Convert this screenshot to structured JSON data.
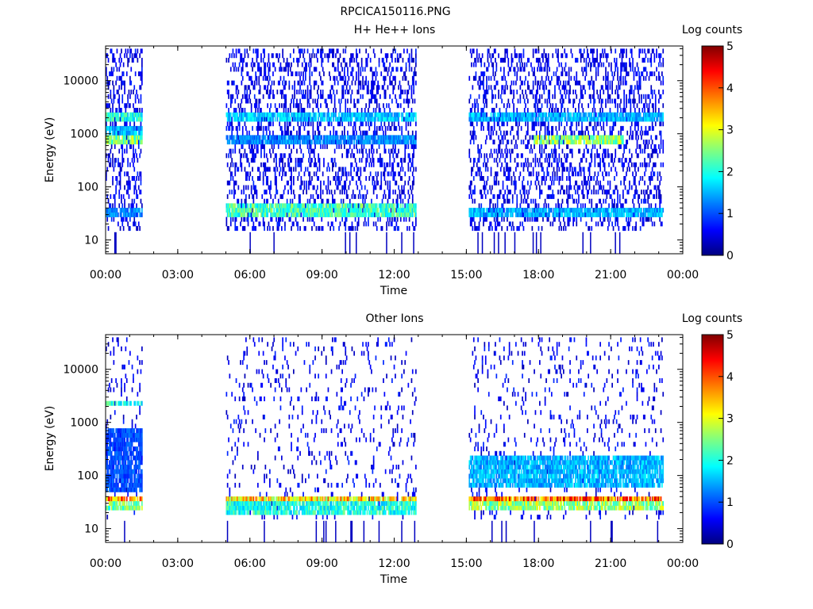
{
  "figure": {
    "title": "RPCICA150116.PNG"
  },
  "colormap": [
    "#000080",
    "#0000ff",
    "#0080ff",
    "#00ffff",
    "#80ff80",
    "#ffff00",
    "#ff8000",
    "#ff0000",
    "#800000"
  ],
  "chart_data": [
    {
      "type": "heatmap",
      "title": "H+ He++ Ions",
      "xlabel": "Time",
      "ylabel": "Energy (eV)",
      "xlim": [
        0,
        24
      ],
      "ylim": [
        5.5,
        45000
      ],
      "yscale": "log",
      "x_tick_values": [
        0,
        3,
        6,
        9,
        12,
        15,
        18,
        21,
        24
      ],
      "x_tick_labels": [
        "00:00",
        "03:00",
        "06:00",
        "09:00",
        "12:00",
        "15:00",
        "18:00",
        "21:00",
        "00:00"
      ],
      "y_tick_values": [
        10,
        100,
        1000,
        10000
      ],
      "y_tick_labels": [
        "10",
        "100",
        "1000",
        "10000"
      ],
      "colorbar": {
        "label": "Log counts",
        "range": [
          0,
          5
        ],
        "ticks": [
          "0",
          "1",
          "2",
          "3",
          "4",
          "5"
        ]
      },
      "data_intervals": [
        [
          0.0,
          1.5
        ],
        [
          5.0,
          12.9
        ],
        [
          15.1,
          23.2
        ]
      ],
      "features": [
        {
          "t": [
            0.0,
            1.5
          ],
          "e": [
            28,
            42
          ],
          "level": 1.3
        },
        {
          "t": [
            0.0,
            1.5
          ],
          "e": [
            600,
            1000
          ],
          "level": 2.5
        },
        {
          "t": [
            0.0,
            1.5
          ],
          "e": [
            1800,
            2600
          ],
          "level": 2.0
        },
        {
          "t": [
            0.0,
            1.5
          ],
          "e": [
            1000,
            1400
          ],
          "level": 1.5
        },
        {
          "t": [
            5.0,
            12.9
          ],
          "e": [
            25,
            45
          ],
          "level": 2.2
        },
        {
          "t": [
            5.0,
            12.9
          ],
          "e": [
            1800,
            2500
          ],
          "level": 1.6
        },
        {
          "t": [
            5.0,
            12.9
          ],
          "e": [
            600,
            900
          ],
          "level": 1.3
        },
        {
          "t": [
            15.1,
            23.2
          ],
          "e": [
            25,
            42
          ],
          "level": 1.5
        },
        {
          "t": [
            15.1,
            23.2
          ],
          "e": [
            1800,
            2500
          ],
          "level": 1.5
        },
        {
          "t": [
            17.8,
            21.5
          ],
          "e": [
            600,
            900
          ],
          "level": 2.6
        }
      ]
    },
    {
      "type": "heatmap",
      "title": "Other Ions",
      "xlabel": "Time",
      "ylabel": "Energy (eV)",
      "xlim": [
        0,
        24
      ],
      "ylim": [
        5.5,
        45000
      ],
      "yscale": "log",
      "x_tick_values": [
        0,
        3,
        6,
        9,
        12,
        15,
        18,
        21,
        24
      ],
      "x_tick_labels": [
        "00:00",
        "03:00",
        "06:00",
        "09:00",
        "12:00",
        "15:00",
        "18:00",
        "21:00",
        "00:00"
      ],
      "y_tick_values": [
        10,
        100,
        1000,
        10000
      ],
      "y_tick_labels": [
        "10",
        "100",
        "1000",
        "10000"
      ],
      "colorbar": {
        "label": "Log counts",
        "range": [
          0,
          5
        ],
        "ticks": [
          "0",
          "1",
          "2",
          "3",
          "4",
          "5"
        ]
      },
      "data_intervals": [
        [
          0.0,
          1.5
        ],
        [
          5.0,
          12.9
        ],
        [
          15.1,
          23.2
        ]
      ],
      "features": [
        {
          "t": [
            0.0,
            1.5
          ],
          "e": [
            30,
            42
          ],
          "level": 3.6
        },
        {
          "t": [
            0.0,
            1.5
          ],
          "e": [
            22,
            30
          ],
          "level": 2.4
        },
        {
          "t": [
            0.0,
            1.5
          ],
          "e": [
            1900,
            2500
          ],
          "level": 2.0
        },
        {
          "t": [
            0.0,
            1.5
          ],
          "e": [
            50,
            800
          ],
          "level": 1.0
        },
        {
          "t": [
            5.0,
            12.9
          ],
          "e": [
            30,
            42
          ],
          "level": 3.3
        },
        {
          "t": [
            5.0,
            12.9
          ],
          "e": [
            20,
            30
          ],
          "level": 2.0
        },
        {
          "t": [
            15.1,
            23.2
          ],
          "e": [
            30,
            42
          ],
          "level": 3.8
        },
        {
          "t": [
            15.1,
            23.2
          ],
          "e": [
            22,
            30
          ],
          "level": 2.6
        },
        {
          "t": [
            15.1,
            23.2
          ],
          "e": [
            60,
            250
          ],
          "level": 1.5
        }
      ]
    }
  ]
}
